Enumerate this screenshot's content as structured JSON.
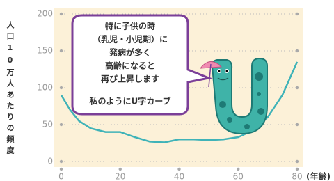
{
  "chart_data": {
    "type": "line",
    "y_label": "人口10万人あたりの頻度",
    "x_label": "(年齢)",
    "x": [
      0,
      3,
      6,
      10,
      15,
      20,
      25,
      30,
      35,
      40,
      45,
      50,
      55,
      60,
      65,
      70,
      75,
      80
    ],
    "values": [
      90,
      70,
      55,
      45,
      40,
      40,
      33,
      27,
      26,
      30,
      30,
      29,
      30,
      33,
      42,
      60,
      90,
      135
    ],
    "color": "#3fb3b8",
    "xlim": [
      0,
      80
    ],
    "xticks": [
      0,
      20,
      40,
      60,
      80
    ],
    "ylim": [
      0,
      200
    ],
    "yticks": [
      0,
      50,
      100,
      150,
      200
    ],
    "grid": true,
    "annotation": [
      "特に子供の時",
      "（乳児・小児期）に",
      "発病が多く",
      "高齢になると",
      "再び上昇します",
      "私のようにU字カーブ"
    ]
  }
}
